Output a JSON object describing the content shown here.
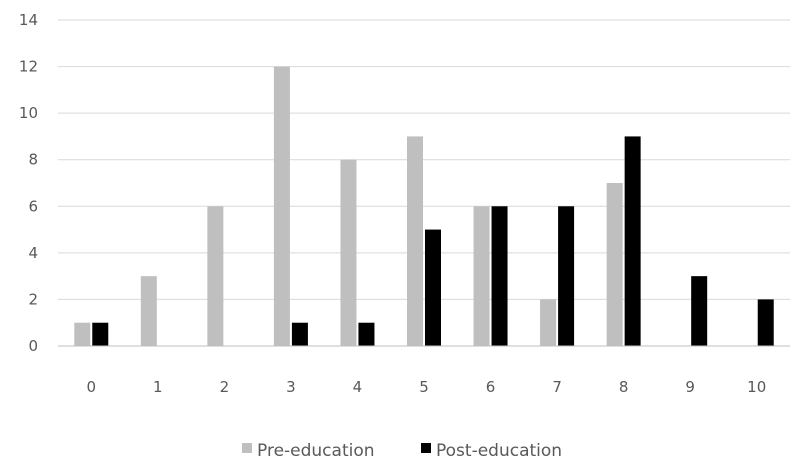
{
  "chart_data": {
    "type": "bar",
    "title": "",
    "xlabel": "",
    "ylabel": "",
    "categories": [
      "0",
      "1",
      "2",
      "3",
      "4",
      "5",
      "6",
      "7",
      "8",
      "9",
      "10"
    ],
    "series": [
      {
        "name": "Pre-education",
        "color": "#bfbfbf",
        "values": [
          1,
          3,
          6,
          12,
          8,
          9,
          6,
          2,
          7,
          0,
          0
        ]
      },
      {
        "name": "Post-education",
        "color": "#000000",
        "values": [
          1,
          0,
          0,
          1,
          1,
          5,
          6,
          6,
          9,
          3,
          2
        ]
      }
    ],
    "ylim": [
      0,
      14
    ],
    "yticks": [
      "0",
      "2",
      "4",
      "6",
      "8",
      "10",
      "12",
      "14"
    ],
    "grid": true,
    "legend_position": "bottom"
  }
}
